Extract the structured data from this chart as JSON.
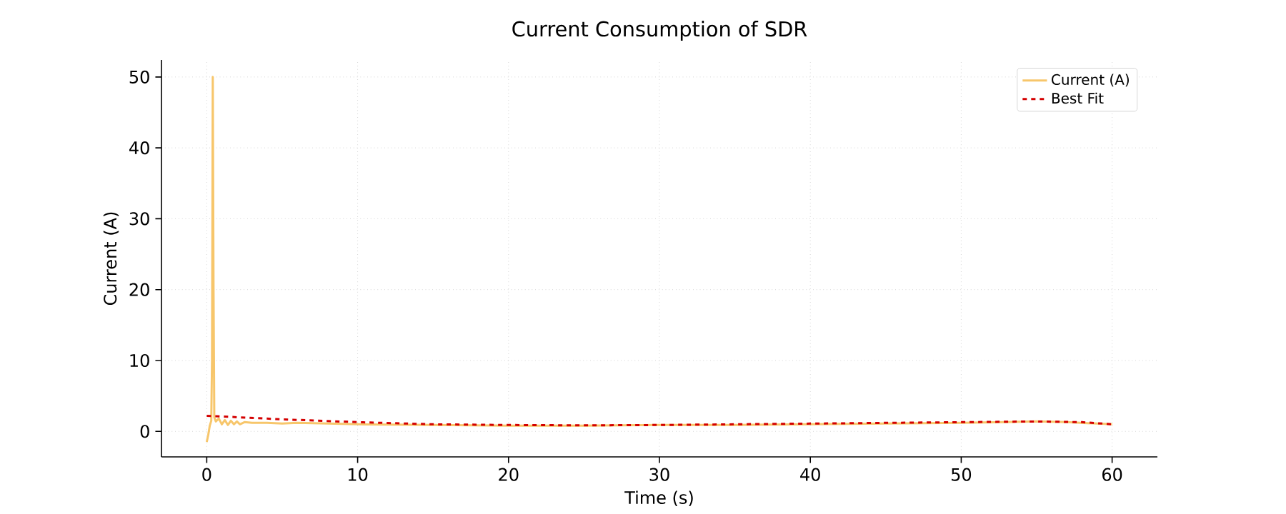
{
  "chart_data": {
    "type": "line",
    "title": "Current Consumption of SDR",
    "xlabel": "Time (s)",
    "ylabel": "Current (A)",
    "xlim": [
      -3,
      63
    ],
    "ylim": [
      -3.6,
      52.4
    ],
    "xticks": [
      0,
      10,
      20,
      30,
      40,
      50,
      60
    ],
    "yticks": [
      0,
      10,
      20,
      30,
      40,
      50
    ],
    "grid": true,
    "legend": "top right",
    "series": [
      {
        "name": "Current (A)",
        "color": "#f7c66b",
        "line_style": "solid",
        "x": [
          0,
          0.1,
          0.2,
          0.3,
          0.35,
          0.4,
          0.45,
          0.5,
          0.6,
          0.8,
          1.0,
          1.2,
          1.4,
          1.6,
          1.8,
          2.0,
          2.2,
          2.5,
          3,
          4,
          5,
          6,
          8,
          10,
          15,
          20,
          25,
          30,
          35,
          40,
          45,
          50,
          53,
          55,
          57,
          60
        ],
        "values": [
          -1.5,
          -0.5,
          0.8,
          1.5,
          10,
          50,
          20,
          2.0,
          1.4,
          1.8,
          1.0,
          1.6,
          0.9,
          1.5,
          1.0,
          1.4,
          1.0,
          1.3,
          1.2,
          1.2,
          1.1,
          1.2,
          1.1,
          1.0,
          0.9,
          0.8,
          0.8,
          0.9,
          0.9,
          1.0,
          1.1,
          1.2,
          1.3,
          1.4,
          1.3,
          1.0
        ]
      },
      {
        "name": "Best Fit",
        "color": "#d40000",
        "line_style": "dashed",
        "x": [
          0,
          5,
          10,
          15,
          20,
          25,
          30,
          35,
          40,
          45,
          50,
          55,
          58,
          60
        ],
        "values": [
          2.2,
          1.7,
          1.3,
          1.0,
          0.9,
          0.85,
          0.9,
          1.0,
          1.1,
          1.2,
          1.3,
          1.4,
          1.3,
          1.0
        ]
      }
    ]
  }
}
